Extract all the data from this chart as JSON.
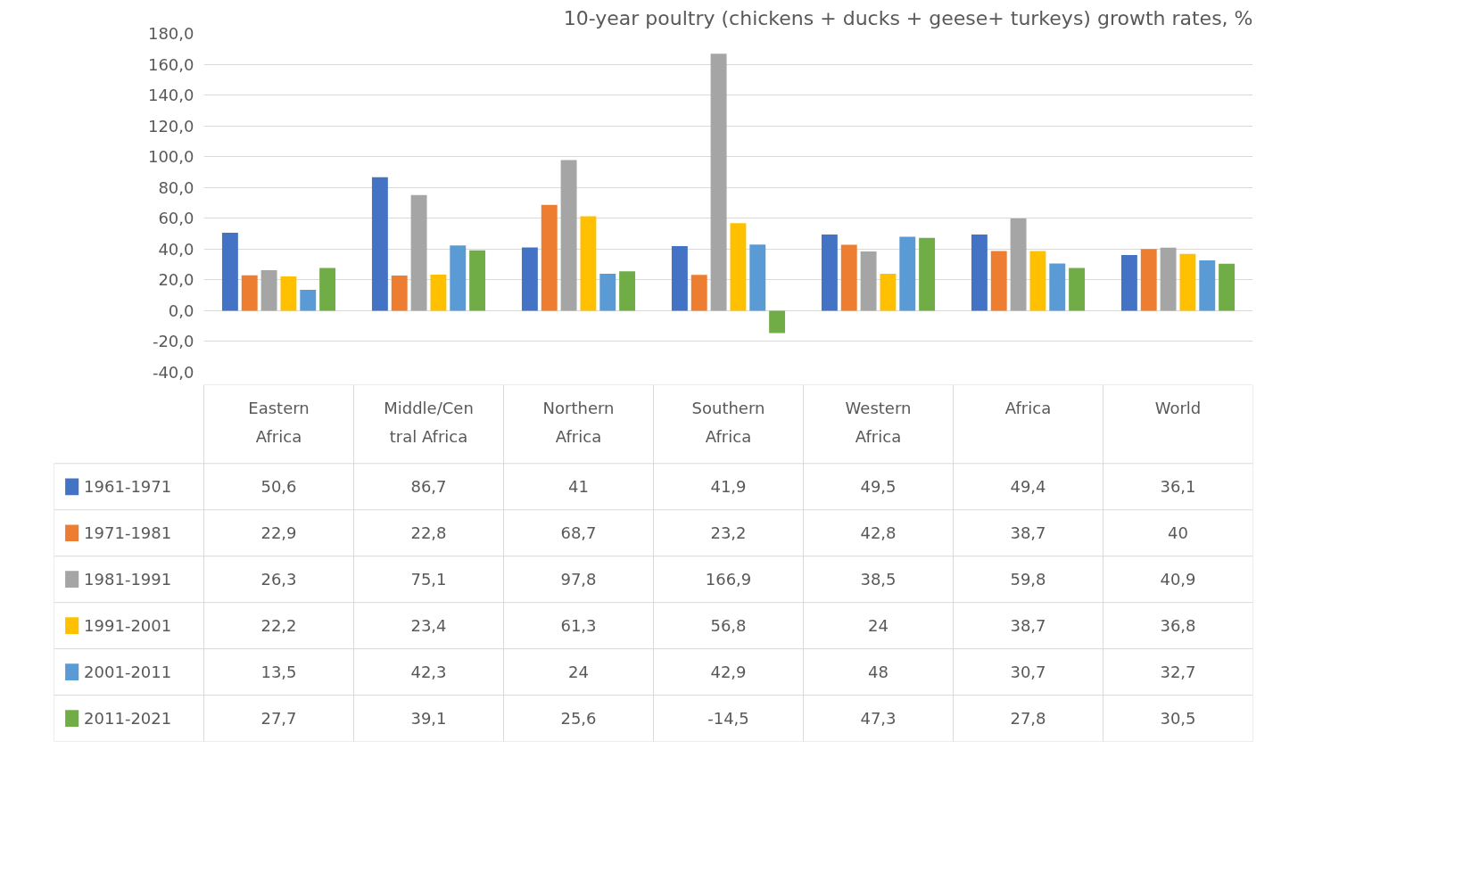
{
  "chart_data": {
    "type": "bar",
    "title": "10-year poultry (chickens + ducks + geese+ turkeys) growth rates, %",
    "categories": [
      "Eastern Africa",
      "Middle/Central Africa",
      "Northern Africa",
      "Southern Africa",
      "Western Africa",
      "Africa",
      "World"
    ],
    "series": [
      {
        "name": "1961-1971",
        "color": "#4472c4",
        "values": [
          50.6,
          86.7,
          41,
          41.9,
          49.5,
          49.4,
          36.1
        ],
        "value_labels": [
          "50,6",
          "86,7",
          "41",
          "41,9",
          "49,5",
          "49,4",
          "36,1"
        ]
      },
      {
        "name": "1971-1981",
        "color": "#ed7d31",
        "values": [
          22.9,
          22.8,
          68.7,
          23.2,
          42.8,
          38.7,
          40
        ],
        "value_labels": [
          "22,9",
          "22,8",
          "68,7",
          "23,2",
          "42,8",
          "38,7",
          "40"
        ]
      },
      {
        "name": "1981-1991",
        "color": "#a5a5a5",
        "values": [
          26.3,
          75.1,
          97.8,
          166.9,
          38.5,
          59.8,
          40.9
        ],
        "value_labels": [
          "26,3",
          "75,1",
          "97,8",
          "166,9",
          "38,5",
          "59,8",
          "40,9"
        ]
      },
      {
        "name": "1991-2001",
        "color": "#ffc000",
        "values": [
          22.2,
          23.4,
          61.3,
          56.8,
          24,
          38.7,
          36.8
        ],
        "value_labels": [
          "22,2",
          "23,4",
          "61,3",
          "56,8",
          "24",
          "38,7",
          "36,8"
        ]
      },
      {
        "name": "2001-2011",
        "color": "#5b9bd5",
        "values": [
          13.5,
          42.3,
          24,
          42.9,
          48,
          30.7,
          32.7
        ],
        "value_labels": [
          "13,5",
          "42,3",
          "24",
          "42,9",
          "48",
          "30,7",
          "32,7"
        ]
      },
      {
        "name": "2011-2021",
        "color": "#70ad47",
        "values": [
          27.7,
          39.1,
          25.6,
          -14.5,
          47.3,
          27.8,
          30.5
        ],
        "value_labels": [
          "27,7",
          "39,1",
          "25,6",
          "-14,5",
          "47,3",
          "27,8",
          "30,5"
        ]
      }
    ],
    "ylim": [
      -40,
      180
    ],
    "yticks": [
      {
        "value": -40,
        "label": "-40,0"
      },
      {
        "value": -20,
        "label": "-20,0"
      },
      {
        "value": 0,
        "label": "0,0"
      },
      {
        "value": 20,
        "label": "20,0"
      },
      {
        "value": 40,
        "label": "40,0"
      },
      {
        "value": 60,
        "label": "60,0"
      },
      {
        "value": 80,
        "label": "80,0"
      },
      {
        "value": 100,
        "label": "100,0"
      },
      {
        "value": 120,
        "label": "120,0"
      },
      {
        "value": 140,
        "label": "140,0"
      },
      {
        "value": 160,
        "label": "160,0"
      },
      {
        "value": 180,
        "label": "180,0"
      }
    ],
    "grid": "y",
    "legend": "bottom"
  }
}
